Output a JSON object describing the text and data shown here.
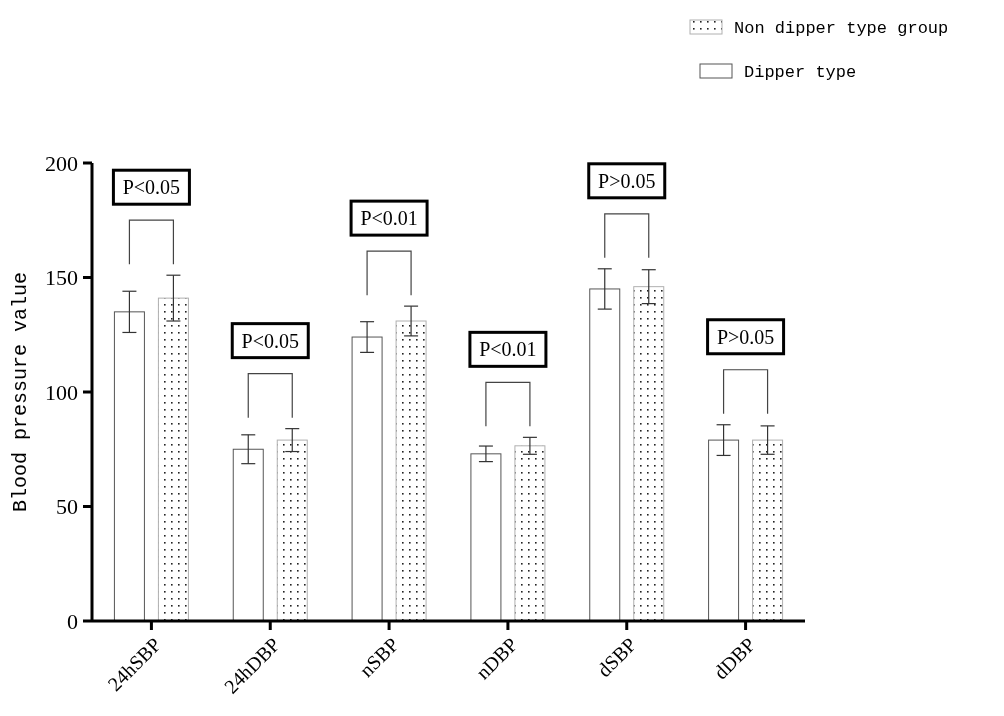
{
  "chart_data": {
    "type": "bar",
    "ylabel": "Blood pressure value",
    "categories": [
      "24hSBP",
      "24hDBP",
      "nSBP",
      "nDBP",
      "dSBP",
      "dDBP"
    ],
    "series": [
      {
        "name": "Dipper type",
        "color": "#ffffff",
        "values": [
          135,
          75,
          124,
          73,
          145,
          79
        ],
        "errors": [
          9,
          6.3,
          6.7,
          3.4,
          8.8,
          6.7
        ]
      },
      {
        "name": "Non dipper type group",
        "color": "#b0b0b0",
        "values": [
          141,
          79,
          131,
          76.5,
          146,
          79
        ],
        "errors": [
          10,
          5,
          6.5,
          3.7,
          7.4,
          6.2
        ]
      }
    ],
    "ylim": [
      0,
      200
    ],
    "yticks": [
      0,
      50,
      100,
      150,
      200
    ],
    "grid": false,
    "legend": "top right",
    "annotations": [
      "P<0.05",
      "P<0.05",
      "P<0.01",
      "P<0.01",
      "P>0.05",
      "P>0.05"
    ]
  }
}
